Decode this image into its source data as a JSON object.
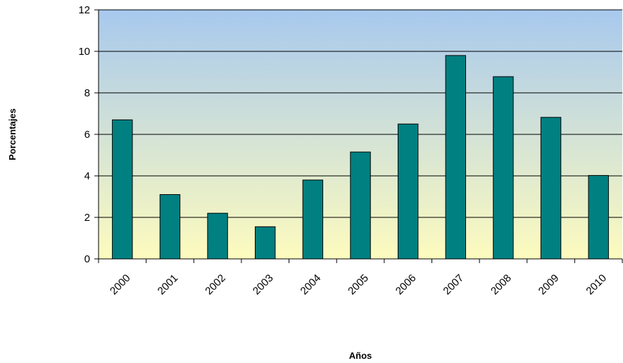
{
  "chart_data": {
    "type": "bar",
    "title": "",
    "xlabel": "Años",
    "ylabel": "Porcentajes",
    "categories": [
      "2000",
      "2001",
      "2002",
      "2003",
      "2004",
      "2005",
      "2006",
      "2007",
      "2008",
      "2009",
      "2010"
    ],
    "values": [
      6.7,
      3.1,
      2.2,
      1.55,
      3.8,
      5.15,
      6.5,
      9.8,
      8.78,
      6.82,
      4.02
    ],
    "ylim": [
      0,
      12
    ],
    "yticks": [
      0,
      2,
      4,
      6,
      8,
      10,
      12
    ],
    "grid": "horizontal",
    "legend": "none",
    "colors": {
      "bar": "#008080",
      "bar_border": "#000000",
      "background_top": "#a8c9ee",
      "background_bottom": "#fdfbbe"
    }
  }
}
